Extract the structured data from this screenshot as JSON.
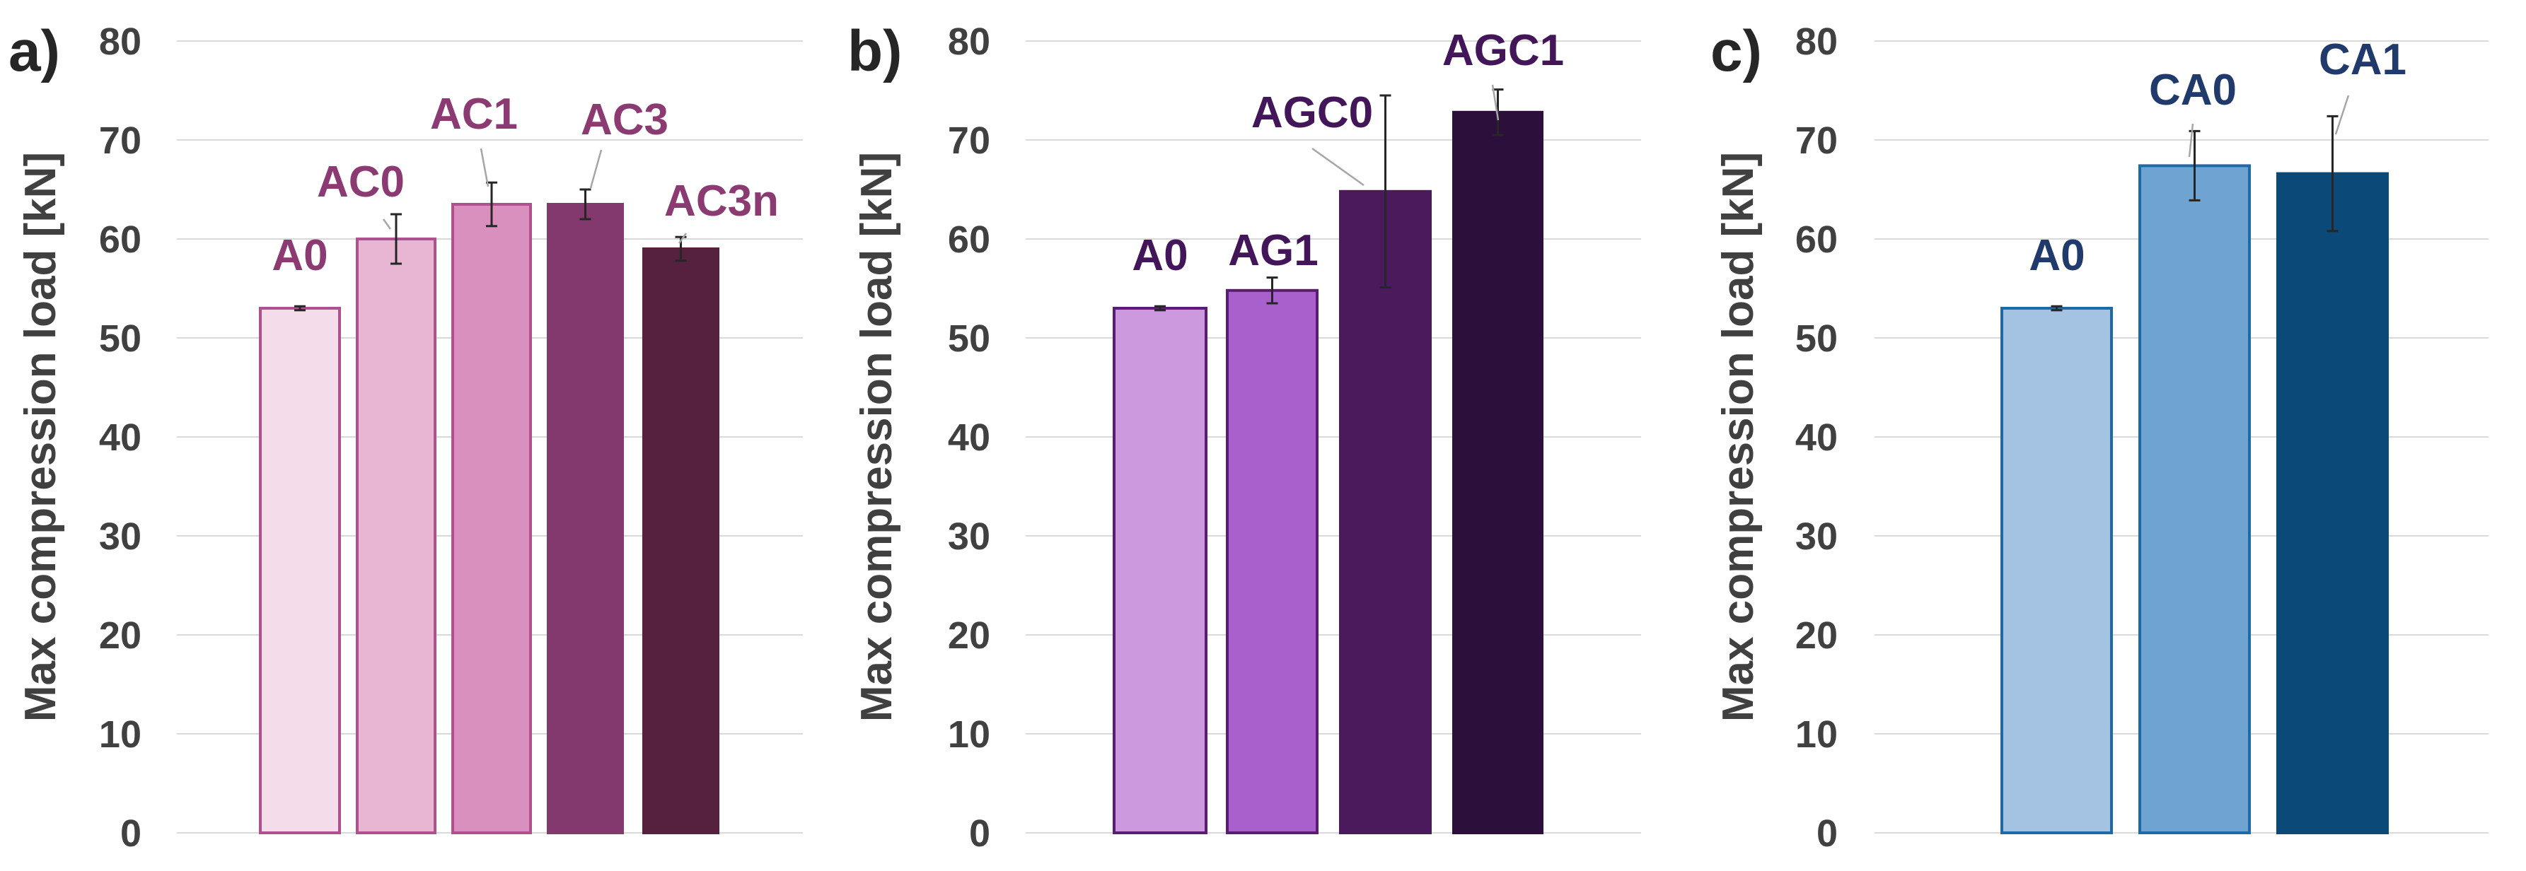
{
  "chart_data": [
    {
      "type": "bar",
      "panel_label": "a)",
      "ylabel": "Max compression load [kN]",
      "ylim": [
        0,
        80
      ],
      "yticks": [
        "0",
        "10",
        "20",
        "30",
        "40",
        "50",
        "60",
        "70",
        "80"
      ],
      "grid": true,
      "label_color": "#8b3a72",
      "categories": [
        "A0",
        "AC0",
        "AC1",
        "AC3",
        "AC3n"
      ],
      "values": [
        53,
        60,
        63.5,
        63.5,
        59
      ],
      "errors": [
        0.2,
        2.5,
        2.2,
        1.5,
        1.2
      ],
      "fill_colors": [
        "#f4dcea",
        "#e8b5d3",
        "#d990bf",
        "#83396d",
        "#56213f"
      ],
      "edge_colors": [
        "#b0508f",
        "#b0508f",
        "#b0508f",
        "#83396d",
        "#56213f"
      ]
    },
    {
      "type": "bar",
      "panel_label": "b)",
      "ylabel": "Max compression load [kN]",
      "ylim": [
        0,
        80
      ],
      "yticks": [
        "0",
        "10",
        "20",
        "30",
        "40",
        "50",
        "60",
        "70",
        "80"
      ],
      "grid": true,
      "label_color": "#43165a",
      "categories": [
        "A0",
        "AG1",
        "AGC0",
        "AGC1"
      ],
      "values": [
        53,
        54.8,
        64.8,
        72.8
      ],
      "errors": [
        0.2,
        1.3,
        9.7,
        2.3
      ],
      "fill_colors": [
        "#cc99de",
        "#a95fcc",
        "#4a1a5d",
        "#2d0f3b"
      ],
      "edge_colors": [
        "#5a1c74",
        "#5a1c74",
        "#4a1a5d",
        "#2d0f3b"
      ]
    },
    {
      "type": "bar",
      "panel_label": "c)",
      "ylabel": "Max compression load [kN]",
      "ylim": [
        0,
        80
      ],
      "yticks": [
        "0",
        "10",
        "20",
        "30",
        "40",
        "50",
        "60",
        "70",
        "80"
      ],
      "grid": true,
      "label_color": "#1f3a6b",
      "categories": [
        "A0",
        "CA0",
        "CA1"
      ],
      "values": [
        53,
        67.4,
        66.6
      ],
      "errors": [
        0.2,
        3.5,
        5.8
      ],
      "fill_colors": [
        "#a4c2e2",
        "#6fa4d2",
        "#0b4a78"
      ],
      "edge_colors": [
        "#1f6aa5",
        "#1f6aa5",
        "#0b4a78"
      ]
    }
  ]
}
